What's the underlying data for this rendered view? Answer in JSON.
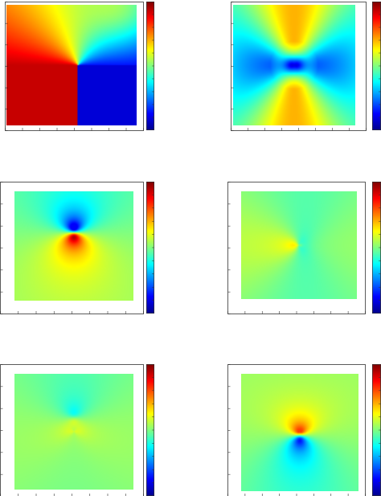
{
  "colormap": [
    "#00008f",
    "#0000ff",
    "#0080ff",
    "#00ffff",
    "#80ff80",
    "#ffff00",
    "#ff8000",
    "#ff0000",
    "#800000"
  ],
  "chart_data": [
    {
      "type": "heatmap",
      "pattern": "phase-quadrant",
      "colorbar": true,
      "grid": false
    },
    {
      "type": "heatmap",
      "pattern": "vortex-hyperbolic",
      "colorbar": true,
      "grid": false
    },
    {
      "type": "heatmap",
      "pattern": "dipole-vertical",
      "colorbar": true,
      "grid": false
    },
    {
      "type": "heatmap",
      "pattern": "dipole-horizontal",
      "colorbar": true,
      "grid": false
    },
    {
      "type": "heatmap",
      "pattern": "weak-dipole-vertical",
      "colorbar": true,
      "grid": false
    },
    {
      "type": "heatmap",
      "pattern": "dipole-inverted",
      "colorbar": true,
      "grid": false
    }
  ]
}
